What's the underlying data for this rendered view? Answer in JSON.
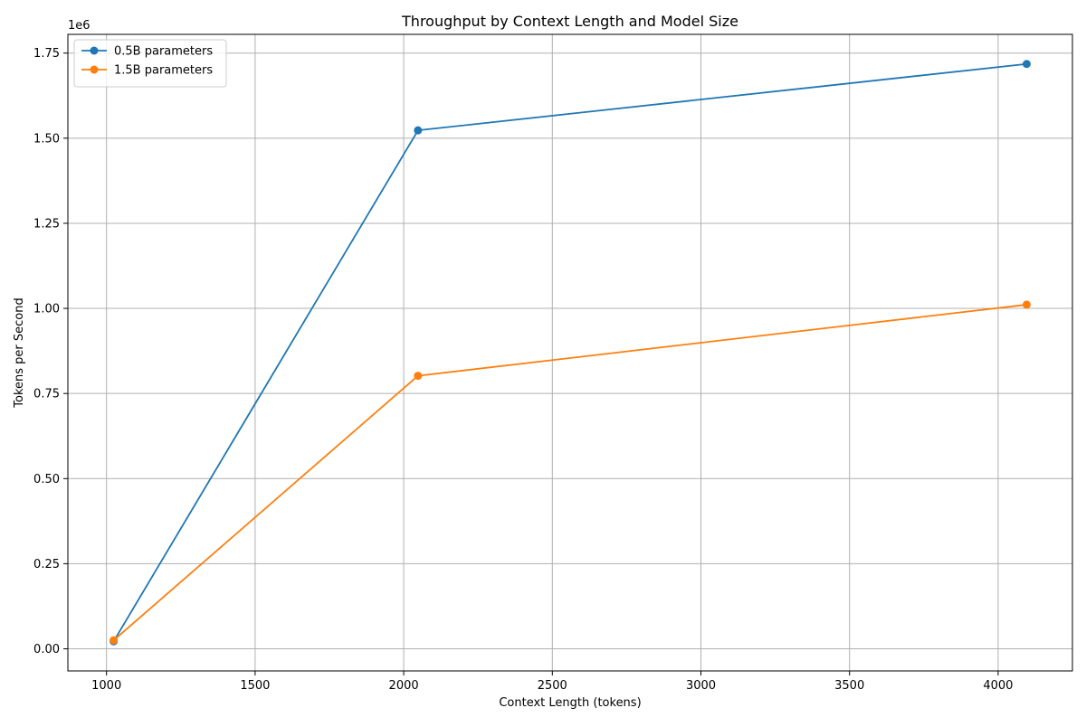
{
  "chart_data": {
    "type": "line",
    "title": "Throughput by Context Length and Model Size",
    "xlabel": "Context Length (tokens)",
    "ylabel": "Tokens per Second",
    "y_multiplier_label": "1e6",
    "xlim": [
      870,
      4250
    ],
    "ylim": [
      -65000,
      1805000
    ],
    "x_ticks": [
      1000,
      1500,
      2000,
      2500,
      3000,
      3500,
      4000
    ],
    "x_tick_labels": [
      "1000",
      "1500",
      "2000",
      "2500",
      "3000",
      "3500",
      "4000"
    ],
    "y_ticks": [
      0,
      250000,
      500000,
      750000,
      1000000,
      1250000,
      1500000,
      1750000
    ],
    "y_tick_labels": [
      "0.00",
      "0.25",
      "0.50",
      "0.75",
      "1.00",
      "1.25",
      "1.50",
      "1.75"
    ],
    "grid": true,
    "legend_position": "top-left",
    "x": [
      1024,
      2048,
      4096
    ],
    "series": [
      {
        "name": "0.5B parameters",
        "color": "#1f77b4",
        "values": [
          22000,
          1523000,
          1718000
        ]
      },
      {
        "name": "1.5B parameters",
        "color": "#ff7f0e",
        "values": [
          25000,
          802000,
          1011000
        ]
      }
    ]
  }
}
